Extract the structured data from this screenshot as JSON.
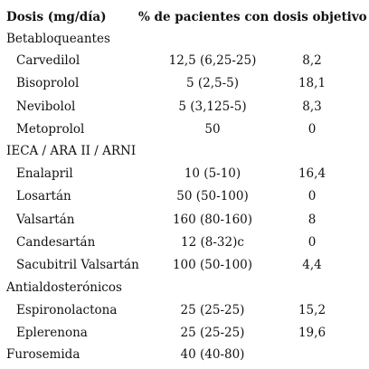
{
  "header": {
    "col1": "Dosis (mg/día)",
    "col2": "% de pacientes con dosis objetivo"
  },
  "rows": [
    {
      "kind": "group",
      "label": "Betabloqueantes",
      "dose": "",
      "pct": ""
    },
    {
      "kind": "item",
      "label": "Carvedilol",
      "dose": "12,5 (6,25-25)",
      "pct": "8,2"
    },
    {
      "kind": "item",
      "label": "Bisoprolol",
      "dose": "5 (2,5-5)",
      "pct": "18,1"
    },
    {
      "kind": "item",
      "label": "Nevibolol",
      "dose": "5 (3,125-5)",
      "pct": "8,3"
    },
    {
      "kind": "item",
      "label": "Metoprolol",
      "dose": "50",
      "pct": "0"
    },
    {
      "kind": "group",
      "label": "IECA / ARA II / ARNI",
      "dose": "",
      "pct": ""
    },
    {
      "kind": "item",
      "label": "Enalapril",
      "dose": "10 (5-10)",
      "pct": "16,4"
    },
    {
      "kind": "item",
      "label": "Losartán",
      "dose": "50 (50-100)",
      "pct": "0"
    },
    {
      "kind": "item",
      "label": "Valsartán",
      "dose": "160 (80-160)",
      "pct": "8"
    },
    {
      "kind": "item",
      "label": "Candesartán",
      "dose": "12 (8-32)c",
      "pct": "0"
    },
    {
      "kind": "item",
      "label": "Sacubitril Valsartán",
      "dose": "100 (50-100)",
      "pct": "4,4"
    },
    {
      "kind": "group",
      "label": "Antialdosterónicos",
      "dose": "",
      "pct": ""
    },
    {
      "kind": "item",
      "label": "Espironolactona",
      "dose": "25 (25-25)",
      "pct": "15,2"
    },
    {
      "kind": "item",
      "label": "Eplerenona",
      "dose": "25 (25-25)",
      "pct": "19,6"
    },
    {
      "kind": "group",
      "label": "Furosemida",
      "dose": "40 (40-80)",
      "pct": ""
    }
  ]
}
